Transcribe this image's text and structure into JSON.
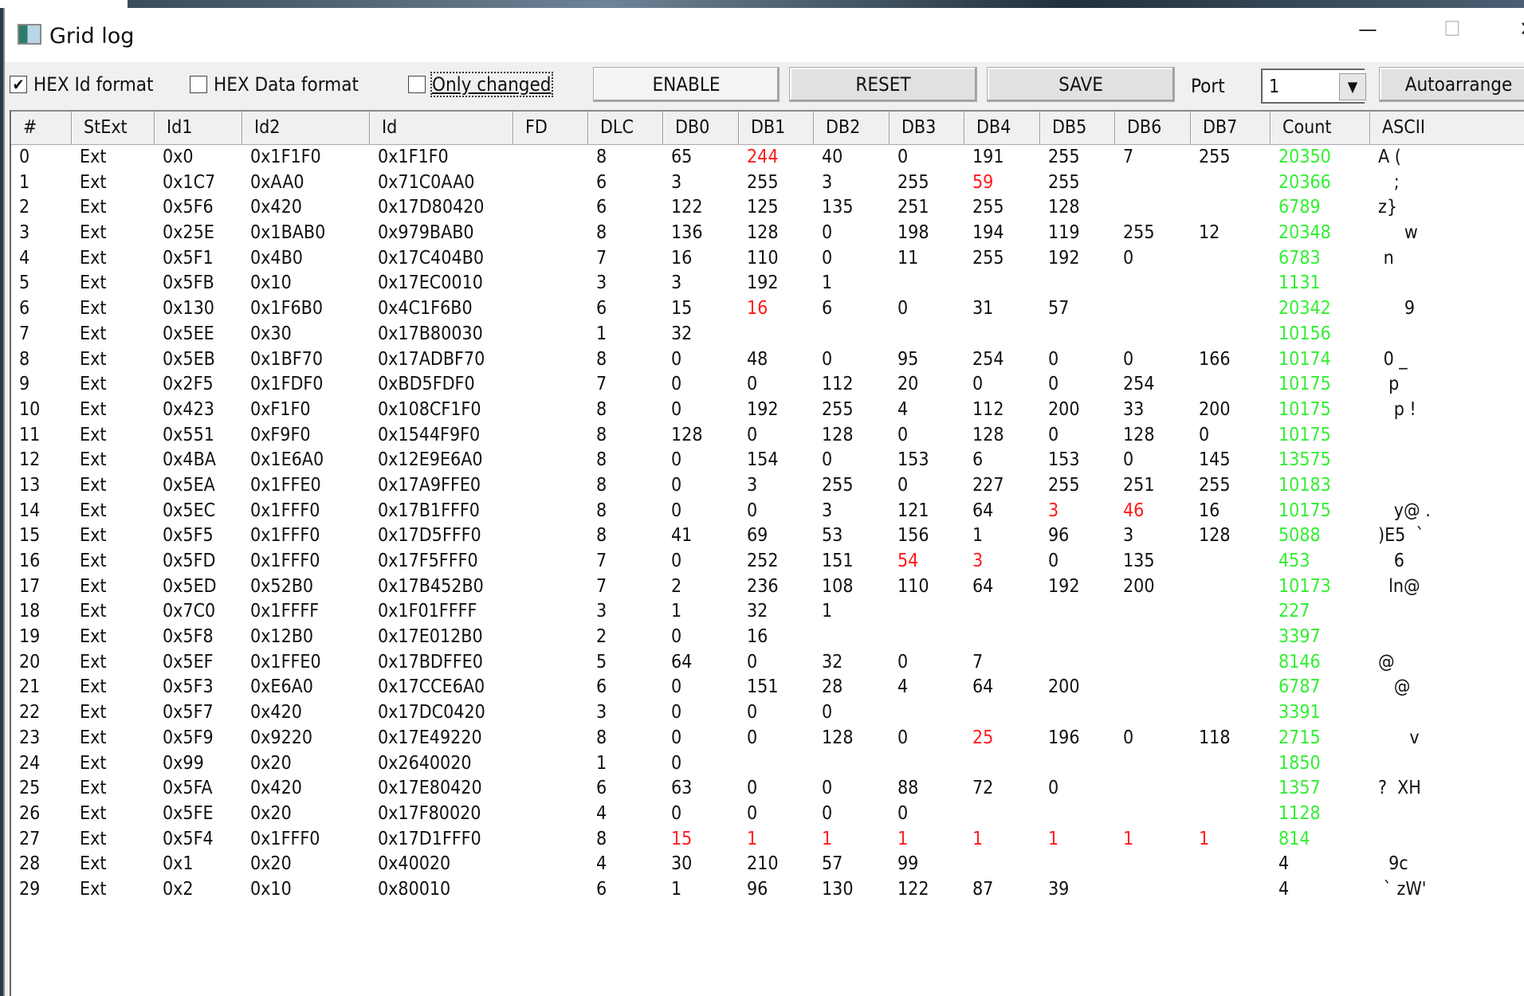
{
  "window": {
    "title": "Grid log",
    "minimize": "—",
    "maximize": "☐",
    "close": "✕"
  },
  "toolbar": {
    "hex_id": {
      "label": "HEX Id format",
      "checked": true
    },
    "hex_data": {
      "label": "HEX Data format",
      "checked": false
    },
    "only_changed": {
      "label": "Only changed",
      "checked": false
    },
    "enable": "ENABLE",
    "reset": "RESET",
    "save": "SAVE",
    "port_label": "Port",
    "port_value": "1",
    "autoarrange": "Autoarrange"
  },
  "colors": {
    "changed": "#ff1a1a",
    "count": "#33ee33"
  },
  "columns": [
    "#",
    "StExt",
    "Id1",
    "Id2",
    "Id",
    "FD",
    "DLC",
    "DB0",
    "DB1",
    "DB2",
    "DB3",
    "DB4",
    "DB5",
    "DB6",
    "DB7",
    "Count",
    "ASCII"
  ],
  "rows": [
    {
      "n": "0",
      "st": "Ext",
      "id1": "0x0",
      "id2": "0x1F1F0",
      "id": "0x1F1F0",
      "fd": "",
      "dlc": "8",
      "db": [
        "65",
        "244",
        "40",
        "0",
        "191",
        "255",
        "7",
        "255"
      ],
      "count": "20350",
      "ascii": "A (",
      "changed": [
        1
      ],
      "count_green": true
    },
    {
      "n": "1",
      "st": "Ext",
      "id1": "0x1C7",
      "id2": "0xAA0",
      "id": "0x71C0AA0",
      "fd": "",
      "dlc": "6",
      "db": [
        "3",
        "255",
        "3",
        "255",
        "59",
        "255",
        "",
        ""
      ],
      "count": "20366",
      "ascii": "   ;",
      "changed": [
        4
      ],
      "count_green": true
    },
    {
      "n": "2",
      "st": "Ext",
      "id1": "0x5F6",
      "id2": "0x420",
      "id": "0x17D80420",
      "fd": "",
      "dlc": "6",
      "db": [
        "122",
        "125",
        "135",
        "251",
        "255",
        "128",
        "",
        ""
      ],
      "count": "6789",
      "ascii": "z}",
      "changed": [],
      "count_green": true
    },
    {
      "n": "3",
      "st": "Ext",
      "id1": "0x25E",
      "id2": "0x1BAB0",
      "id": "0x979BAB0",
      "fd": "",
      "dlc": "8",
      "db": [
        "136",
        "128",
        "0",
        "198",
        "194",
        "119",
        "255",
        "12"
      ],
      "count": "20348",
      "ascii": "     w",
      "changed": [],
      "count_green": true
    },
    {
      "n": "4",
      "st": "Ext",
      "id1": "0x5F1",
      "id2": "0x4B0",
      "id": "0x17C404B0",
      "fd": "",
      "dlc": "7",
      "db": [
        "16",
        "110",
        "0",
        "11",
        "255",
        "192",
        "0",
        ""
      ],
      "count": "6783",
      "ascii": " n",
      "changed": [],
      "count_green": true
    },
    {
      "n": "5",
      "st": "Ext",
      "id1": "0x5FB",
      "id2": "0x10",
      "id": "0x17EC0010",
      "fd": "",
      "dlc": "3",
      "db": [
        "3",
        "192",
        "1",
        "",
        "",
        "",
        "",
        ""
      ],
      "count": "1131",
      "ascii": "",
      "changed": [],
      "count_green": true
    },
    {
      "n": "6",
      "st": "Ext",
      "id1": "0x130",
      "id2": "0x1F6B0",
      "id": "0x4C1F6B0",
      "fd": "",
      "dlc": "6",
      "db": [
        "15",
        "16",
        "6",
        "0",
        "31",
        "57",
        "",
        ""
      ],
      "count": "20342",
      "ascii": "     9",
      "changed": [
        1
      ],
      "count_green": true
    },
    {
      "n": "7",
      "st": "Ext",
      "id1": "0x5EE",
      "id2": "0x30",
      "id": "0x17B80030",
      "fd": "",
      "dlc": "1",
      "db": [
        "32",
        "",
        "",
        "",
        "",
        "",
        "",
        ""
      ],
      "count": "10156",
      "ascii": "",
      "changed": [],
      "count_green": true
    },
    {
      "n": "8",
      "st": "Ext",
      "id1": "0x5EB",
      "id2": "0x1BF70",
      "id": "0x17ADBF70",
      "fd": "",
      "dlc": "8",
      "db": [
        "0",
        "48",
        "0",
        "95",
        "254",
        "0",
        "0",
        "166"
      ],
      "count": "10174",
      "ascii": " 0 _",
      "changed": [],
      "count_green": true
    },
    {
      "n": "9",
      "st": "Ext",
      "id1": "0x2F5",
      "id2": "0x1FDF0",
      "id": "0xBD5FDF0",
      "fd": "",
      "dlc": "7",
      "db": [
        "0",
        "0",
        "112",
        "20",
        "0",
        "0",
        "254",
        ""
      ],
      "count": "10175",
      "ascii": "  p",
      "changed": [],
      "count_green": true
    },
    {
      "n": "10",
      "st": "Ext",
      "id1": "0x423",
      "id2": "0xF1F0",
      "id": "0x108CF1F0",
      "fd": "",
      "dlc": "8",
      "db": [
        "0",
        "192",
        "255",
        "4",
        "112",
        "200",
        "33",
        "200"
      ],
      "count": "10175",
      "ascii": "   p !",
      "changed": [],
      "count_green": true
    },
    {
      "n": "11",
      "st": "Ext",
      "id1": "0x551",
      "id2": "0xF9F0",
      "id": "0x1544F9F0",
      "fd": "",
      "dlc": "8",
      "db": [
        "128",
        "0",
        "128",
        "0",
        "128",
        "0",
        "128",
        "0"
      ],
      "count": "10175",
      "ascii": "",
      "changed": [],
      "count_green": true
    },
    {
      "n": "12",
      "st": "Ext",
      "id1": "0x4BA",
      "id2": "0x1E6A0",
      "id": "0x12E9E6A0",
      "fd": "",
      "dlc": "8",
      "db": [
        "0",
        "154",
        "0",
        "153",
        "6",
        "153",
        "0",
        "145"
      ],
      "count": "13575",
      "ascii": "",
      "changed": [],
      "count_green": true
    },
    {
      "n": "13",
      "st": "Ext",
      "id1": "0x5EA",
      "id2": "0x1FFE0",
      "id": "0x17A9FFE0",
      "fd": "",
      "dlc": "8",
      "db": [
        "0",
        "3",
        "255",
        "0",
        "227",
        "255",
        "251",
        "255"
      ],
      "count": "10183",
      "ascii": "",
      "changed": [],
      "count_green": true
    },
    {
      "n": "14",
      "st": "Ext",
      "id1": "0x5EC",
      "id2": "0x1FFF0",
      "id": "0x17B1FFF0",
      "fd": "",
      "dlc": "8",
      "db": [
        "0",
        "0",
        "3",
        "121",
        "64",
        "3",
        "46",
        "16"
      ],
      "count": "10175",
      "ascii": "   y@ .",
      "changed": [
        5,
        6
      ],
      "count_green": true
    },
    {
      "n": "15",
      "st": "Ext",
      "id1": "0x5F5",
      "id2": "0x1FFF0",
      "id": "0x17D5FFF0",
      "fd": "",
      "dlc": "8",
      "db": [
        "41",
        "69",
        "53",
        "156",
        "1",
        "96",
        "3",
        "128"
      ],
      "count": "5088",
      "ascii": ")E5  `",
      "changed": [],
      "count_green": true
    },
    {
      "n": "16",
      "st": "Ext",
      "id1": "0x5FD",
      "id2": "0x1FFF0",
      "id": "0x17F5FFF0",
      "fd": "",
      "dlc": "7",
      "db": [
        "0",
        "252",
        "151",
        "54",
        "3",
        "0",
        "135",
        ""
      ],
      "count": "453",
      "ascii": "   6",
      "changed": [
        3,
        4
      ],
      "count_green": true
    },
    {
      "n": "17",
      "st": "Ext",
      "id1": "0x5ED",
      "id2": "0x52B0",
      "id": "0x17B452B0",
      "fd": "",
      "dlc": "7",
      "db": [
        "2",
        "236",
        "108",
        "110",
        "64",
        "192",
        "200",
        ""
      ],
      "count": "10173",
      "ascii": "  ln@",
      "changed": [],
      "count_green": true
    },
    {
      "n": "18",
      "st": "Ext",
      "id1": "0x7C0",
      "id2": "0x1FFFF",
      "id": "0x1F01FFFF",
      "fd": "",
      "dlc": "3",
      "db": [
        "1",
        "32",
        "1",
        "",
        "",
        "",
        "",
        ""
      ],
      "count": "227",
      "ascii": "",
      "changed": [],
      "count_green": true
    },
    {
      "n": "19",
      "st": "Ext",
      "id1": "0x5F8",
      "id2": "0x12B0",
      "id": "0x17E012B0",
      "fd": "",
      "dlc": "2",
      "db": [
        "0",
        "16",
        "",
        "",
        "",
        "",
        "",
        ""
      ],
      "count": "3397",
      "ascii": "",
      "changed": [],
      "count_green": true
    },
    {
      "n": "20",
      "st": "Ext",
      "id1": "0x5EF",
      "id2": "0x1FFE0",
      "id": "0x17BDFFE0",
      "fd": "",
      "dlc": "5",
      "db": [
        "64",
        "0",
        "32",
        "0",
        "7",
        "",
        "",
        ""
      ],
      "count": "8146",
      "ascii": "@",
      "changed": [],
      "count_green": true
    },
    {
      "n": "21",
      "st": "Ext",
      "id1": "0x5F3",
      "id2": "0xE6A0",
      "id": "0x17CCE6A0",
      "fd": "",
      "dlc": "6",
      "db": [
        "0",
        "151",
        "28",
        "4",
        "64",
        "200",
        "",
        ""
      ],
      "count": "6787",
      "ascii": "   @",
      "changed": [],
      "count_green": true
    },
    {
      "n": "22",
      "st": "Ext",
      "id1": "0x5F7",
      "id2": "0x420",
      "id": "0x17DC0420",
      "fd": "",
      "dlc": "3",
      "db": [
        "0",
        "0",
        "0",
        "",
        "",
        "",
        "",
        ""
      ],
      "count": "3391",
      "ascii": "",
      "changed": [],
      "count_green": true
    },
    {
      "n": "23",
      "st": "Ext",
      "id1": "0x5F9",
      "id2": "0x9220",
      "id": "0x17E49220",
      "fd": "",
      "dlc": "8",
      "db": [
        "0",
        "0",
        "128",
        "0",
        "25",
        "196",
        "0",
        "118"
      ],
      "count": "2715",
      "ascii": "      v",
      "changed": [
        4
      ],
      "count_green": true
    },
    {
      "n": "24",
      "st": "Ext",
      "id1": "0x99",
      "id2": "0x20",
      "id": "0x2640020",
      "fd": "",
      "dlc": "1",
      "db": [
        "0",
        "",
        "",
        "",
        "",
        "",
        "",
        ""
      ],
      "count": "1850",
      "ascii": "",
      "changed": [],
      "count_green": true
    },
    {
      "n": "25",
      "st": "Ext",
      "id1": "0x5FA",
      "id2": "0x420",
      "id": "0x17E80420",
      "fd": "",
      "dlc": "6",
      "db": [
        "63",
        "0",
        "0",
        "88",
        "72",
        "0",
        "",
        ""
      ],
      "count": "1357",
      "ascii": "?  XH",
      "changed": [],
      "count_green": true
    },
    {
      "n": "26",
      "st": "Ext",
      "id1": "0x5FE",
      "id2": "0x20",
      "id": "0x17F80020",
      "fd": "",
      "dlc": "4",
      "db": [
        "0",
        "0",
        "0",
        "0",
        "",
        "",
        "",
        ""
      ],
      "count": "1128",
      "ascii": "",
      "changed": [],
      "count_green": true
    },
    {
      "n": "27",
      "st": "Ext",
      "id1": "0x5F4",
      "id2": "0x1FFF0",
      "id": "0x17D1FFF0",
      "fd": "",
      "dlc": "8",
      "db": [
        "15",
        "1",
        "1",
        "1",
        "1",
        "1",
        "1",
        "1"
      ],
      "count": "814",
      "ascii": "",
      "changed": [
        0,
        1,
        2,
        3,
        4,
        5,
        6,
        7
      ],
      "count_green": true
    },
    {
      "n": "28",
      "st": "Ext",
      "id1": "0x1",
      "id2": "0x20",
      "id": "0x40020",
      "fd": "",
      "dlc": "4",
      "db": [
        "30",
        "210",
        "57",
        "99",
        "",
        "",
        "",
        ""
      ],
      "count": "4",
      "ascii": "  9c",
      "changed": [],
      "count_green": false
    },
    {
      "n": "29",
      "st": "Ext",
      "id1": "0x2",
      "id2": "0x10",
      "id": "0x80010",
      "fd": "",
      "dlc": "6",
      "db": [
        "1",
        "96",
        "130",
        "122",
        "87",
        "39",
        "",
        ""
      ],
      "count": "4",
      "ascii": " ` zW'",
      "changed": [],
      "count_green": false
    }
  ]
}
